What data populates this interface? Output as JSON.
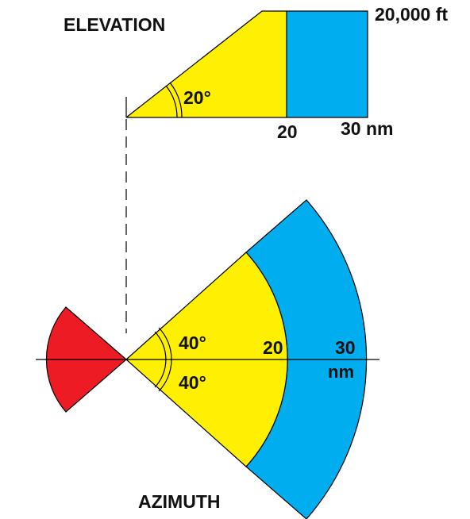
{
  "colors": {
    "inner_sector": "#ffef00",
    "outer_sector": "#00aeef",
    "rear_sector": "#ed1c24",
    "line": "#000000",
    "text": "#111111"
  },
  "elevation": {
    "title": "ELEVATION",
    "ceiling_label": "20,000 ft",
    "angle_label": "20°",
    "range_inner_label": "20",
    "range_outer_label": "30 nm"
  },
  "azimuth": {
    "title": "AZIMUTH",
    "upper_angle_label": "40°",
    "lower_angle_label": "40°",
    "range_inner_label": "20",
    "range_outer_label": "30",
    "range_unit_label": "nm"
  }
}
